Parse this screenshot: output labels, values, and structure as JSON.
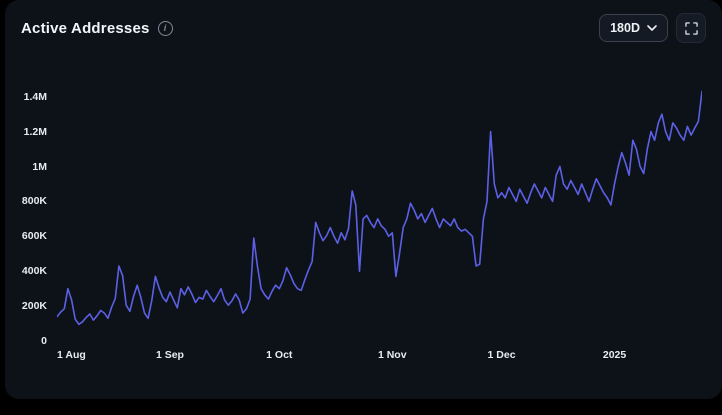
{
  "header": {
    "title": "Active Addresses",
    "info_glyph": "i",
    "range_value": "180D"
  },
  "colors": {
    "background": "#000000",
    "card": "#0d1218",
    "line": "#5c60e6",
    "axis_text": "#e8ecf1"
  },
  "chart_data": {
    "type": "line",
    "title": "Active Addresses",
    "series_name": "Active Addresses",
    "range": "180D",
    "line_color": "#5c60e6",
    "ylim": [
      0,
      1450000
    ],
    "grid": false,
    "legend": false,
    "y_ticks": [
      {
        "value": 0,
        "label": "0"
      },
      {
        "value": 200000,
        "label": "200K"
      },
      {
        "value": 400000,
        "label": "400K"
      },
      {
        "value": 600000,
        "label": "600K"
      },
      {
        "value": 800000,
        "label": "800K"
      },
      {
        "value": 1000000,
        "label": "1M"
      },
      {
        "value": 1200000,
        "label": "1.2M"
      },
      {
        "value": 1400000,
        "label": "1.4M"
      }
    ],
    "x_ticks": [
      {
        "index": 0,
        "label": "1 Aug"
      },
      {
        "index": 31,
        "label": "1 Sep"
      },
      {
        "index": 61,
        "label": "1 Oct"
      },
      {
        "index": 92,
        "label": "1 Nov"
      },
      {
        "index": 122,
        "label": "1 Dec"
      },
      {
        "index": 153,
        "label": "2025"
      }
    ],
    "values": [
      140000,
      165000,
      185000,
      300000,
      235000,
      125000,
      95000,
      110000,
      135000,
      155000,
      120000,
      145000,
      175000,
      160000,
      130000,
      195000,
      245000,
      430000,
      375000,
      205000,
      170000,
      255000,
      320000,
      250000,
      160000,
      130000,
      230000,
      370000,
      305000,
      250000,
      225000,
      280000,
      235000,
      190000,
      300000,
      265000,
      310000,
      270000,
      220000,
      250000,
      240000,
      290000,
      255000,
      225000,
      260000,
      300000,
      235000,
      205000,
      230000,
      270000,
      235000,
      160000,
      185000,
      240000,
      590000,
      430000,
      300000,
      265000,
      240000,
      285000,
      320000,
      300000,
      345000,
      420000,
      380000,
      330000,
      300000,
      290000,
      350000,
      405000,
      455000,
      680000,
      620000,
      575000,
      605000,
      650000,
      600000,
      560000,
      620000,
      580000,
      645000,
      860000,
      780000,
      400000,
      700000,
      720000,
      680000,
      650000,
      700000,
      660000,
      640000,
      600000,
      620000,
      370000,
      500000,
      650000,
      700000,
      790000,
      750000,
      700000,
      730000,
      680000,
      720000,
      760000,
      700000,
      650000,
      700000,
      680000,
      660000,
      700000,
      650000,
      630000,
      640000,
      620000,
      600000,
      430000,
      440000,
      700000,
      800000,
      1200000,
      900000,
      820000,
      850000,
      820000,
      880000,
      840000,
      800000,
      870000,
      830000,
      790000,
      850000,
      900000,
      860000,
      820000,
      880000,
      840000,
      800000,
      950000,
      1000000,
      900000,
      870000,
      920000,
      880000,
      840000,
      900000,
      850000,
      800000,
      870000,
      930000,
      890000,
      850000,
      820000,
      780000,
      900000,
      1000000,
      1080000,
      1020000,
      950000,
      1150000,
      1100000,
      1000000,
      960000,
      1100000,
      1200000,
      1150000,
      1250000,
      1300000,
      1200000,
      1150000,
      1250000,
      1220000,
      1180000,
      1150000,
      1230000,
      1180000,
      1220000,
      1260000,
      1430000
    ]
  }
}
